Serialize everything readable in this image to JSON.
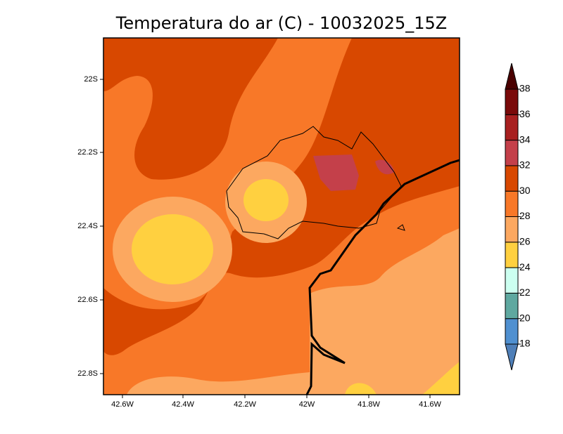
{
  "title": "Temperatura do ar (C) - 10032025_15Z",
  "x_axis": {
    "ticks": [
      "42.6W",
      "42.4W",
      "42.2W",
      "42W",
      "41.8W",
      "41.6W"
    ]
  },
  "y_axis": {
    "ticks": [
      "22S",
      "22.2S",
      "22.4S",
      "22.6S",
      "22.8S"
    ]
  },
  "colorbar": {
    "levels": [
      18,
      20,
      22,
      24,
      26,
      28,
      30,
      32,
      34,
      36,
      38
    ],
    "colors": [
      "#4f7fb8",
      "#5090d0",
      "#5fa8a0",
      "#ccfff0",
      "#ffd040",
      "#fca860",
      "#f87828",
      "#d84800",
      "#c4404a",
      "#a82020",
      "#7a0a0a",
      "#4a0000"
    ]
  }
}
